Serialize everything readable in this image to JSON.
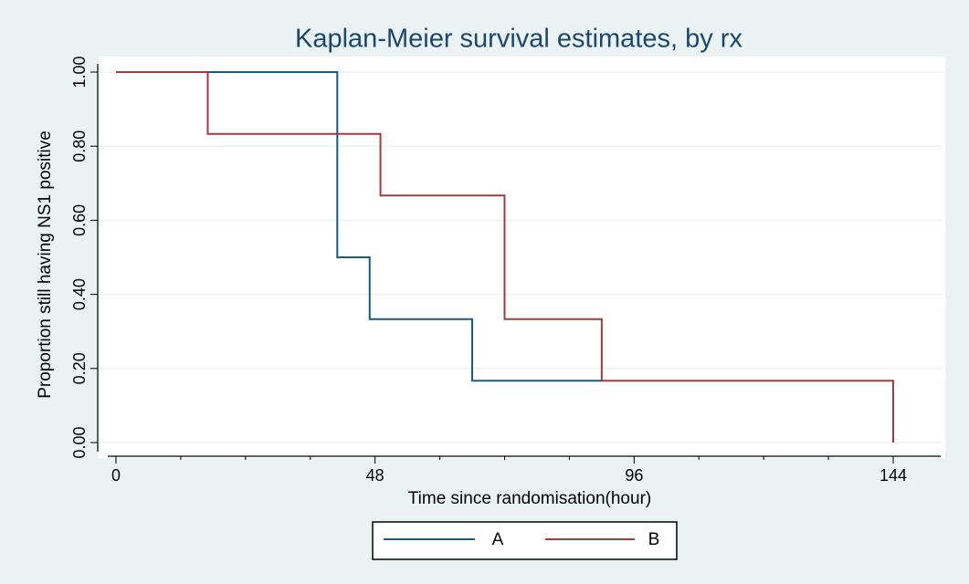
{
  "chart_data": {
    "type": "step",
    "title": "Kaplan-Meier survival estimates, by rx",
    "xlabel": "Time since randomisation(hour)",
    "ylabel": "Proportion still having NS1 positive",
    "series": [
      {
        "name": "A",
        "color": "#1a5a7e",
        "x": [
          0,
          41,
          47,
          66,
          90
        ],
        "values": [
          1,
          0.5,
          0.333,
          0.167,
          0.167
        ]
      },
      {
        "name": "B",
        "color": "#9e3d3f",
        "x": [
          0,
          17,
          49,
          72,
          90,
          144
        ],
        "values": [
          1,
          0.833,
          0.667,
          0.333,
          0.167,
          0
        ]
      }
    ],
    "xlim": [
      0,
      144
    ],
    "xticks": [
      0,
      48,
      96,
      144
    ],
    "xminor": [
      12,
      24,
      36,
      60,
      72,
      84,
      108,
      120,
      132
    ],
    "ylim": [
      0,
      1
    ],
    "yticks": [
      {
        "value": 0,
        "label": "0.00"
      },
      {
        "value": 0.2,
        "label": "0.20"
      },
      {
        "value": 0.4,
        "label": "0.40"
      },
      {
        "value": 0.6,
        "label": "0.60"
      },
      {
        "value": 0.8,
        "label": "0.80"
      },
      {
        "value": 1,
        "label": "1.00"
      }
    ],
    "grid": true,
    "legend": "bottom"
  }
}
